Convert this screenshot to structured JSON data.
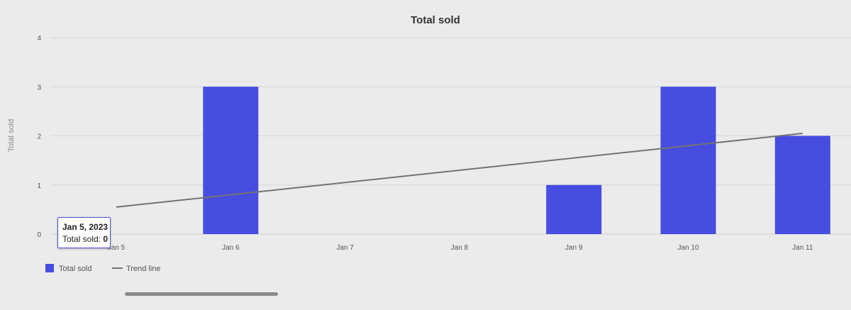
{
  "chart_data": {
    "type": "bar",
    "title": "Total sold",
    "xlabel": "",
    "ylabel": "Total sold",
    "ylim": [
      0,
      4
    ],
    "yticks": [
      0,
      1,
      2,
      3,
      4
    ],
    "categories": [
      "Jan 5",
      "Jan 6",
      "Jan 7",
      "Jan 8",
      "Jan 9",
      "Jan 10",
      "Jan 11"
    ],
    "series": [
      {
        "name": "Total sold",
        "values": [
          0,
          3,
          0,
          0,
          1,
          3,
          2
        ],
        "color": "#474ddf"
      }
    ],
    "trendline": {
      "name": "Trend line",
      "start": 0.55,
      "end": 2.05,
      "color": "#737373"
    },
    "legend": {
      "position": "bottom-left",
      "items": [
        {
          "label": "Total sold",
          "type": "bar",
          "color": "#474ddf"
        },
        {
          "label": "Trend line",
          "type": "line",
          "color": "#737373"
        }
      ]
    },
    "grid": true
  },
  "tooltip": {
    "date": "Jan 5, 2023",
    "label": "Total sold: ",
    "value": "0"
  },
  "colors": {
    "background": "#ebebeb",
    "gridline": "#d6d6d6",
    "bar": "#474ddf",
    "trend": "#737373",
    "scrollbar": "#8a8a8a"
  }
}
